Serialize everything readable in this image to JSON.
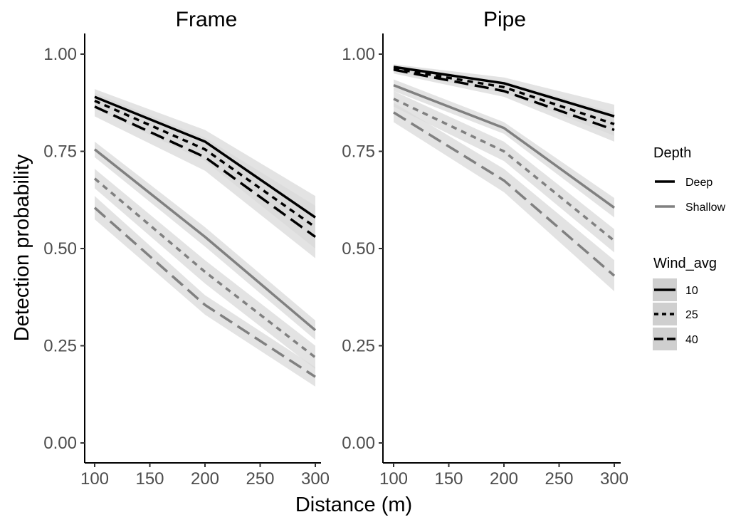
{
  "chart_data": {
    "type": "line",
    "xlabel": "Distance (m)",
    "ylabel": "Detection probability",
    "xlim": [
      100,
      300
    ],
    "ylim": [
      0,
      1
    ],
    "x_ticks": [
      100,
      150,
      200,
      250,
      300
    ],
    "y_ticks": [
      0,
      0.25,
      0.5,
      0.75,
      1
    ],
    "y_tick_labels": [
      "0.00",
      "0.25",
      "0.50",
      "0.75",
      "1.00"
    ],
    "grid": false,
    "legend_position": "right",
    "colors": {
      "Deep": "#000000",
      "Shallow": "#808080",
      "ribbon": "#d9d9d9"
    },
    "legend": {
      "depth_title": "Depth",
      "depth_items": [
        "Deep",
        "Shallow"
      ],
      "wind_title": "Wind_avg",
      "wind_items": [
        "10",
        "25",
        "40"
      ]
    },
    "panels": [
      {
        "title": "Frame",
        "x": [
          100,
          200,
          300
        ],
        "series": [
          {
            "depth": "Deep",
            "wind": "10",
            "values": [
              0.89,
              0.775,
              0.58
            ],
            "lower": [
              0.87,
              0.745,
              0.525
            ],
            "upper": [
              0.91,
              0.805,
              0.635
            ]
          },
          {
            "depth": "Deep",
            "wind": "25",
            "values": [
              0.88,
              0.755,
              0.555
            ],
            "lower": [
              0.86,
              0.725,
              0.5
            ],
            "upper": [
              0.9,
              0.785,
              0.61
            ]
          },
          {
            "depth": "Deep",
            "wind": "40",
            "values": [
              0.865,
              0.735,
              0.53
            ],
            "lower": [
              0.84,
              0.7,
              0.475
            ],
            "upper": [
              0.89,
              0.77,
              0.585
            ]
          },
          {
            "depth": "Shallow",
            "wind": "10",
            "values": [
              0.755,
              0.53,
              0.29
            ],
            "lower": [
              0.735,
              0.505,
              0.265
            ],
            "upper": [
              0.775,
              0.555,
              0.315
            ]
          },
          {
            "depth": "Shallow",
            "wind": "25",
            "values": [
              0.68,
              0.44,
              0.22
            ],
            "lower": [
              0.655,
              0.41,
              0.19
            ],
            "upper": [
              0.705,
              0.47,
              0.25
            ]
          },
          {
            "depth": "Shallow",
            "wind": "40",
            "values": [
              0.605,
              0.355,
              0.17
            ],
            "lower": [
              0.575,
              0.33,
              0.145
            ],
            "upper": [
              0.635,
              0.38,
              0.195
            ]
          }
        ]
      },
      {
        "title": "Pipe",
        "x": [
          100,
          200,
          300
        ],
        "series": [
          {
            "depth": "Deep",
            "wind": "10",
            "values": [
              0.967,
              0.925,
              0.84
            ],
            "lower": [
              0.96,
              0.91,
              0.81
            ],
            "upper": [
              0.974,
              0.94,
              0.87
            ]
          },
          {
            "depth": "Deep",
            "wind": "25",
            "values": [
              0.963,
              0.915,
              0.82
            ],
            "lower": [
              0.955,
              0.9,
              0.79
            ],
            "upper": [
              0.971,
              0.93,
              0.85
            ]
          },
          {
            "depth": "Deep",
            "wind": "40",
            "values": [
              0.96,
              0.905,
              0.805
            ],
            "lower": [
              0.95,
              0.89,
              0.775
            ],
            "upper": [
              0.97,
              0.92,
              0.835
            ]
          },
          {
            "depth": "Shallow",
            "wind": "10",
            "values": [
              0.92,
              0.81,
              0.605
            ],
            "lower": [
              0.905,
              0.795,
              0.58
            ],
            "upper": [
              0.935,
              0.825,
              0.63
            ]
          },
          {
            "depth": "Shallow",
            "wind": "25",
            "values": [
              0.885,
              0.75,
              0.52
            ],
            "lower": [
              0.865,
              0.725,
              0.49
            ],
            "upper": [
              0.905,
              0.775,
              0.55
            ]
          },
          {
            "depth": "Shallow",
            "wind": "40",
            "values": [
              0.85,
              0.675,
              0.43
            ],
            "lower": [
              0.825,
              0.645,
              0.39
            ],
            "upper": [
              0.875,
              0.705,
              0.47
            ]
          }
        ]
      }
    ]
  }
}
